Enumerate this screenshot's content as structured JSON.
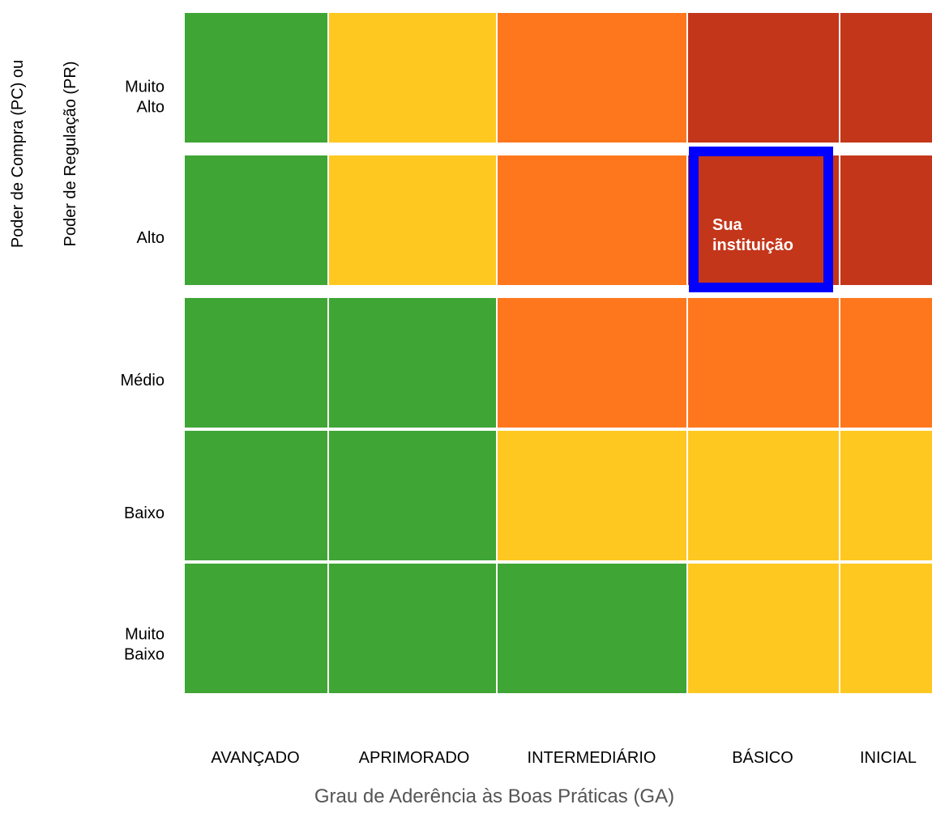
{
  "chart_data": {
    "type": "heatmap",
    "ylabel_lines": [
      "Poder de Compra (PC) ou",
      "Poder de Regulação (PR)"
    ],
    "xlabel": "Grau de Aderência às Boas Práticas (GA)",
    "x_categories": [
      "AVANÇADO",
      "APRIMORADO",
      "INTERMEDIÁRIO",
      "BÁSICO",
      "INICIAL"
    ],
    "y_categories": [
      [
        "Muito",
        "Alto"
      ],
      [
        "Alto"
      ],
      [
        "Médio"
      ],
      [
        "Baixo"
      ],
      [
        "Muito",
        "Baixo"
      ]
    ],
    "colors": {
      "green": "#3fa535",
      "yellow": "#fec821",
      "orange": "#fe771d",
      "red": "#c4361a",
      "highlight": "#0000ff"
    },
    "cells": [
      [
        "green",
        "yellow",
        "orange",
        "red",
        "red"
      ],
      [
        "green",
        "yellow",
        "orange",
        "red",
        "red"
      ],
      [
        "green",
        "green",
        "orange",
        "orange",
        "orange"
      ],
      [
        "green",
        "green",
        "yellow",
        "yellow",
        "yellow"
      ],
      [
        "green",
        "green",
        "green",
        "yellow",
        "yellow"
      ]
    ],
    "highlight": {
      "row": 1,
      "col": 3,
      "label_lines": [
        "Sua",
        "instituição"
      ]
    }
  }
}
